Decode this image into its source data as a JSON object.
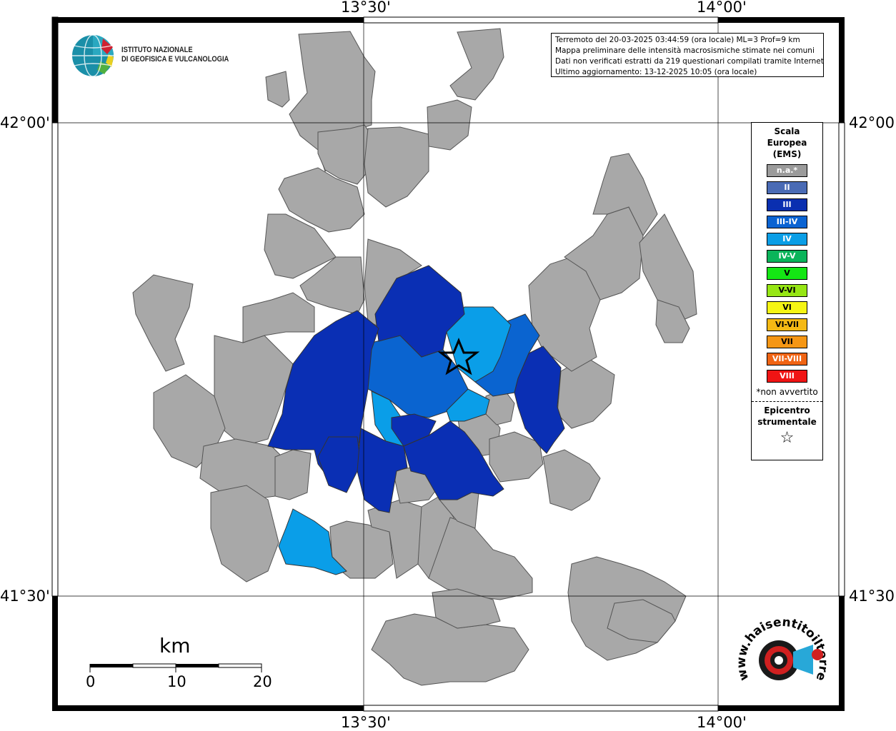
{
  "coords": {
    "top_left": "13°30'",
    "top_right": "14°00'",
    "bottom_left": "13°30'",
    "bottom_right": "14°00'",
    "left_top": "42°00'",
    "left_bottom": "41°30'",
    "right_top": "42°00'",
    "right_bottom": "41°30'"
  },
  "info_box": {
    "line1": "Terremoto del 20-03-2025 03:44:59 (ora locale) ML=3 Prof=9 km",
    "line2": "Mappa preliminare delle intensità macrosismiche stimate nei comuni",
    "line3": "Dati non verificati estratti da 219 questionari compilati tramite Internet.",
    "line4": "Ultimo aggiornamento: 13-12-2025 10:05 (ora locale)"
  },
  "logo": {
    "line1": "ISTITUTO NAZIONALE",
    "line2": "DI GEOFISICA E VULCANOLOGIA"
  },
  "legend": {
    "title1": "Scala",
    "title2": "Europea",
    "title3": "(EMS)",
    "items": [
      {
        "label": "n.a.*",
        "color": "#9b9b9b"
      },
      {
        "label": "II",
        "color": "#4a6bb5"
      },
      {
        "label": "III",
        "color": "#0a2fb0"
      },
      {
        "label": "III-IV",
        "color": "#0a63d2"
      },
      {
        "label": "IV",
        "color": "#0a9ee6"
      },
      {
        "label": "IV-V",
        "color": "#0ab45a"
      },
      {
        "label": "V",
        "color": "#14e614"
      },
      {
        "label": "V-VI",
        "color": "#96e614"
      },
      {
        "label": "VI",
        "color": "#f5f514"
      },
      {
        "label": "VI-VII",
        "color": "#f5b914"
      },
      {
        "label": "VII",
        "color": "#f59614"
      },
      {
        "label": "VII-VIII",
        "color": "#f06414"
      },
      {
        "label": "VIII",
        "color": "#f01414"
      }
    ],
    "note": "*non avvertito",
    "epicenter1": "Epicentro",
    "epicenter2": "strumentale",
    "star": "☆"
  },
  "scalebar": {
    "unit": "km",
    "ticks": [
      "0",
      "10",
      "20"
    ]
  },
  "colors": {
    "na": "#a8a8a8",
    "iii": "#0a2fb4",
    "iii_iv": "#0a64d0",
    "iv": "#0a9ee8"
  },
  "watermark": {
    "text": "www.haisentitoilterremoto.it"
  }
}
